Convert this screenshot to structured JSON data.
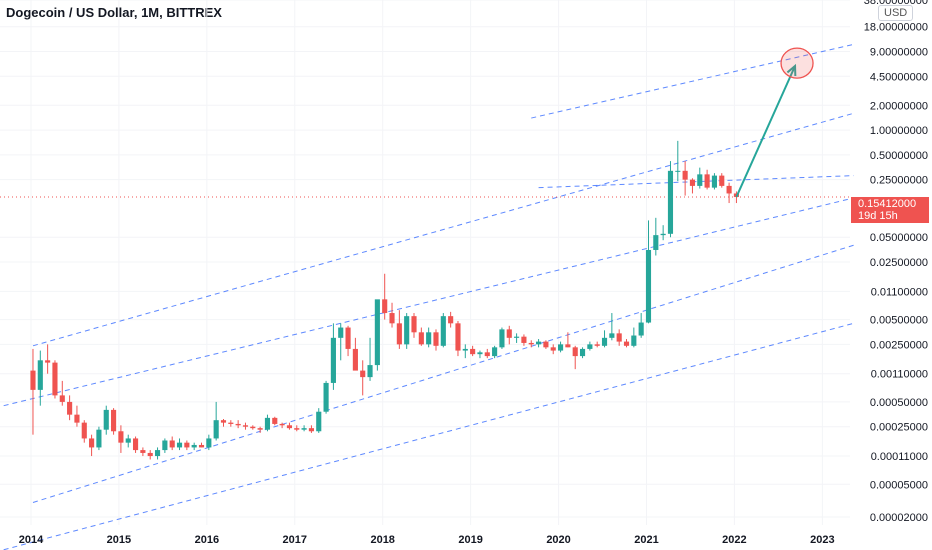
{
  "header": {
    "title": "Dogecoin / US Dollar, 1M, BITTREX",
    "currency": "USD"
  },
  "last_price": {
    "value": "0.15412000",
    "countdown": "19d 15h"
  },
  "colors": {
    "up": "#26a69a",
    "down": "#ef5350",
    "channel": "#2962ff",
    "arrow": "#26a69a",
    "target_circle": "#ef5350",
    "price_line": "#ef5350"
  },
  "chart_data": {
    "type": "candlestick",
    "title": "Dogecoin / US Dollar, 1M, BITTREX",
    "y_scale": "log",
    "x_ticks": [
      "2014",
      "2015",
      "2016",
      "2017",
      "2018",
      "2019",
      "2020",
      "2021",
      "2022",
      "2023"
    ],
    "y_ticks": [
      "38.00000000",
      "18.00000000",
      "9.00000000",
      "4.50000000",
      "2.00000000",
      "1.00000000",
      "0.50000000",
      "0.25000000",
      "0.05000000",
      "0.02500000",
      "0.01100000",
      "0.00500000",
      "0.00250000",
      "0.00110000",
      "0.00050000",
      "0.00025000",
      "0.00011000",
      "0.00005000",
      "0.00002000"
    ],
    "ylim": [
      1.6e-05,
      38
    ],
    "xlim": [
      "2013-09",
      "2023-05"
    ],
    "series": [
      {
        "t": "2014-01",
        "o": 0.0012,
        "h": 0.0022,
        "l": 0.0002,
        "c": 0.0007
      },
      {
        "t": "2014-02",
        "o": 0.0007,
        "h": 0.0021,
        "l": 0.00045,
        "c": 0.0016
      },
      {
        "t": "2014-03",
        "o": 0.0016,
        "h": 0.0025,
        "l": 0.0011,
        "c": 0.0015
      },
      {
        "t": "2014-04",
        "o": 0.0015,
        "h": 0.0016,
        "l": 0.00055,
        "c": 0.0006
      },
      {
        "t": "2014-05",
        "o": 0.0006,
        "h": 0.0009,
        "l": 0.00045,
        "c": 0.0005
      },
      {
        "t": "2014-06",
        "o": 0.0005,
        "h": 0.0006,
        "l": 0.0003,
        "c": 0.00035
      },
      {
        "t": "2014-07",
        "o": 0.00035,
        "h": 0.00045,
        "l": 0.00025,
        "c": 0.00028
      },
      {
        "t": "2014-08",
        "o": 0.00028,
        "h": 0.0003,
        "l": 0.00016,
        "c": 0.00018
      },
      {
        "t": "2014-09",
        "o": 0.00018,
        "h": 0.0002,
        "l": 0.00011,
        "c": 0.00014
      },
      {
        "t": "2014-10",
        "o": 0.00014,
        "h": 0.00025,
        "l": 0.00013,
        "c": 0.00023
      },
      {
        "t": "2014-11",
        "o": 0.00023,
        "h": 0.00045,
        "l": 0.0002,
        "c": 0.0004
      },
      {
        "t": "2014-12",
        "o": 0.0004,
        "h": 0.00042,
        "l": 0.0002,
        "c": 0.00022
      },
      {
        "t": "2015-01",
        "o": 0.00022,
        "h": 0.00026,
        "l": 0.00012,
        "c": 0.00016
      },
      {
        "t": "2015-02",
        "o": 0.00016,
        "h": 0.0002,
        "l": 0.00014,
        "c": 0.00018
      },
      {
        "t": "2015-03",
        "o": 0.00018,
        "h": 0.00019,
        "l": 0.00012,
        "c": 0.00013
      },
      {
        "t": "2015-04",
        "o": 0.00013,
        "h": 0.00014,
        "l": 0.00011,
        "c": 0.00012
      },
      {
        "t": "2015-05",
        "o": 0.00012,
        "h": 0.00013,
        "l": 0.0001,
        "c": 0.00011
      },
      {
        "t": "2015-06",
        "o": 0.00011,
        "h": 0.00014,
        "l": 0.0001,
        "c": 0.00013
      },
      {
        "t": "2015-07",
        "o": 0.00013,
        "h": 0.00018,
        "l": 0.00012,
        "c": 0.00017
      },
      {
        "t": "2015-08",
        "o": 0.00017,
        "h": 0.00019,
        "l": 0.00013,
        "c": 0.00014
      },
      {
        "t": "2015-09",
        "o": 0.00014,
        "h": 0.00018,
        "l": 0.00013,
        "c": 0.00016
      },
      {
        "t": "2015-10",
        "o": 0.00016,
        "h": 0.00017,
        "l": 0.00013,
        "c": 0.00014
      },
      {
        "t": "2015-11",
        "o": 0.00014,
        "h": 0.00016,
        "l": 0.00013,
        "c": 0.00015
      },
      {
        "t": "2015-12",
        "o": 0.00015,
        "h": 0.00016,
        "l": 0.00014,
        "c": 0.00014
      },
      {
        "t": "2016-01",
        "o": 0.00014,
        "h": 0.0002,
        "l": 0.00013,
        "c": 0.00018
      },
      {
        "t": "2016-02",
        "o": 0.00018,
        "h": 0.0005,
        "l": 0.00017,
        "c": 0.0003
      },
      {
        "t": "2016-03",
        "o": 0.0003,
        "h": 0.00031,
        "l": 0.00025,
        "c": 0.00028
      },
      {
        "t": "2016-04",
        "o": 0.00028,
        "h": 0.0003,
        "l": 0.00025,
        "c": 0.00027
      },
      {
        "t": "2016-05",
        "o": 0.00027,
        "h": 0.0003,
        "l": 0.00024,
        "c": 0.00026
      },
      {
        "t": "2016-06",
        "o": 0.00026,
        "h": 0.00028,
        "l": 0.00023,
        "c": 0.00025
      },
      {
        "t": "2016-07",
        "o": 0.00025,
        "h": 0.00026,
        "l": 0.00023,
        "c": 0.00024
      },
      {
        "t": "2016-08",
        "o": 0.00024,
        "h": 0.00025,
        "l": 0.00021,
        "c": 0.00023
      },
      {
        "t": "2016-09",
        "o": 0.00023,
        "h": 0.00035,
        "l": 0.00022,
        "c": 0.00032
      },
      {
        "t": "2016-10",
        "o": 0.00032,
        "h": 0.00033,
        "l": 0.00026,
        "c": 0.00027
      },
      {
        "t": "2016-11",
        "o": 0.00027,
        "h": 0.00028,
        "l": 0.00024,
        "c": 0.00026
      },
      {
        "t": "2016-12",
        "o": 0.00026,
        "h": 0.00028,
        "l": 0.00023,
        "c": 0.00024
      },
      {
        "t": "2017-01",
        "o": 0.00024,
        "h": 0.00026,
        "l": 0.00022,
        "c": 0.00023
      },
      {
        "t": "2017-02",
        "o": 0.00023,
        "h": 0.00026,
        "l": 0.00022,
        "c": 0.00024
      },
      {
        "t": "2017-03",
        "o": 0.00024,
        "h": 0.00026,
        "l": 0.00021,
        "c": 0.00022
      },
      {
        "t": "2017-04",
        "o": 0.00022,
        "h": 0.00042,
        "l": 0.00021,
        "c": 0.00038
      },
      {
        "t": "2017-05",
        "o": 0.00038,
        "h": 0.0009,
        "l": 0.00036,
        "c": 0.00085
      },
      {
        "t": "2017-06",
        "o": 0.00085,
        "h": 0.0045,
        "l": 0.0007,
        "c": 0.003
      },
      {
        "t": "2017-07",
        "o": 0.003,
        "h": 0.0045,
        "l": 0.0016,
        "c": 0.004
      },
      {
        "t": "2017-08",
        "o": 0.004,
        "h": 0.0042,
        "l": 0.0018,
        "c": 0.0022
      },
      {
        "t": "2017-09",
        "o": 0.0022,
        "h": 0.003,
        "l": 0.0017,
        "c": 0.0012
      },
      {
        "t": "2017-10",
        "o": 0.0012,
        "h": 0.0016,
        "l": 0.0006,
        "c": 0.001
      },
      {
        "t": "2017-11",
        "o": 0.001,
        "h": 0.003,
        "l": 0.0009,
        "c": 0.0014
      },
      {
        "t": "2017-12",
        "o": 0.0014,
        "h": 0.0075,
        "l": 0.0012,
        "c": 0.0088
      },
      {
        "t": "2018-01",
        "o": 0.0088,
        "h": 0.018,
        "l": 0.005,
        "c": 0.006
      },
      {
        "t": "2018-02",
        "o": 0.006,
        "h": 0.008,
        "l": 0.004,
        "c": 0.0045
      },
      {
        "t": "2018-03",
        "o": 0.0045,
        "h": 0.0065,
        "l": 0.0022,
        "c": 0.0025
      },
      {
        "t": "2018-04",
        "o": 0.0025,
        "h": 0.006,
        "l": 0.0022,
        "c": 0.0055
      },
      {
        "t": "2018-05",
        "o": 0.0055,
        "h": 0.006,
        "l": 0.003,
        "c": 0.0035
      },
      {
        "t": "2018-06",
        "o": 0.0035,
        "h": 0.004,
        "l": 0.0024,
        "c": 0.0025
      },
      {
        "t": "2018-07",
        "o": 0.0025,
        "h": 0.004,
        "l": 0.0023,
        "c": 0.0035
      },
      {
        "t": "2018-08",
        "o": 0.0035,
        "h": 0.0038,
        "l": 0.0021,
        "c": 0.0024
      },
      {
        "t": "2018-09",
        "o": 0.0024,
        "h": 0.006,
        "l": 0.0023,
        "c": 0.0055
      },
      {
        "t": "2018-10",
        "o": 0.0055,
        "h": 0.0062,
        "l": 0.004,
        "c": 0.0045
      },
      {
        "t": "2018-11",
        "o": 0.0045,
        "h": 0.0048,
        "l": 0.0018,
        "c": 0.0021
      },
      {
        "t": "2018-12",
        "o": 0.0021,
        "h": 0.0025,
        "l": 0.0017,
        "c": 0.0022
      },
      {
        "t": "2019-01",
        "o": 0.0022,
        "h": 0.0024,
        "l": 0.0018,
        "c": 0.0019
      },
      {
        "t": "2019-02",
        "o": 0.0019,
        "h": 0.0021,
        "l": 0.0017,
        "c": 0.002
      },
      {
        "t": "2019-03",
        "o": 0.002,
        "h": 0.0022,
        "l": 0.0017,
        "c": 0.0018
      },
      {
        "t": "2019-04",
        "o": 0.0018,
        "h": 0.0024,
        "l": 0.0017,
        "c": 0.0023
      },
      {
        "t": "2019-05",
        "o": 0.0023,
        "h": 0.004,
        "l": 0.0022,
        "c": 0.0038
      },
      {
        "t": "2019-06",
        "o": 0.0038,
        "h": 0.0042,
        "l": 0.0025,
        "c": 0.003
      },
      {
        "t": "2019-07",
        "o": 0.003,
        "h": 0.0034,
        "l": 0.0026,
        "c": 0.0031
      },
      {
        "t": "2019-08",
        "o": 0.0031,
        "h": 0.0033,
        "l": 0.0024,
        "c": 0.0026
      },
      {
        "t": "2019-09",
        "o": 0.0026,
        "h": 0.0028,
        "l": 0.0023,
        "c": 0.0025
      },
      {
        "t": "2019-10",
        "o": 0.0025,
        "h": 0.0029,
        "l": 0.0023,
        "c": 0.0027
      },
      {
        "t": "2019-11",
        "o": 0.0027,
        "h": 0.0028,
        "l": 0.0022,
        "c": 0.0023
      },
      {
        "t": "2019-12",
        "o": 0.0023,
        "h": 0.0025,
        "l": 0.0019,
        "c": 0.0021
      },
      {
        "t": "2020-01",
        "o": 0.0021,
        "h": 0.0027,
        "l": 0.002,
        "c": 0.0025
      },
      {
        "t": "2020-02",
        "o": 0.0025,
        "h": 0.0035,
        "l": 0.0023,
        "c": 0.0023
      },
      {
        "t": "2020-03",
        "o": 0.0023,
        "h": 0.0024,
        "l": 0.00125,
        "c": 0.0018
      },
      {
        "t": "2020-04",
        "o": 0.0018,
        "h": 0.0023,
        "l": 0.0017,
        "c": 0.0022
      },
      {
        "t": "2020-05",
        "o": 0.0022,
        "h": 0.0027,
        "l": 0.0021,
        "c": 0.0025
      },
      {
        "t": "2020-06",
        "o": 0.0025,
        "h": 0.0027,
        "l": 0.0023,
        "c": 0.0024
      },
      {
        "t": "2020-07",
        "o": 0.0024,
        "h": 0.0037,
        "l": 0.0023,
        "c": 0.003
      },
      {
        "t": "2020-08",
        "o": 0.003,
        "h": 0.006,
        "l": 0.0028,
        "c": 0.0034
      },
      {
        "t": "2020-09",
        "o": 0.0034,
        "h": 0.0038,
        "l": 0.0024,
        "c": 0.0027
      },
      {
        "t": "2020-10",
        "o": 0.0027,
        "h": 0.0029,
        "l": 0.0023,
        "c": 0.0024
      },
      {
        "t": "2020-11",
        "o": 0.0024,
        "h": 0.004,
        "l": 0.0023,
        "c": 0.0032
      },
      {
        "t": "2020-12",
        "o": 0.0032,
        "h": 0.006,
        "l": 0.003,
        "c": 0.0046
      },
      {
        "t": "2021-01",
        "o": 0.0046,
        "h": 0.08,
        "l": 0.0045,
        "c": 0.035
      },
      {
        "t": "2021-02",
        "o": 0.035,
        "h": 0.086,
        "l": 0.03,
        "c": 0.053
      },
      {
        "t": "2021-03",
        "o": 0.053,
        "h": 0.07,
        "l": 0.046,
        "c": 0.055
      },
      {
        "t": "2021-04",
        "o": 0.055,
        "h": 0.42,
        "l": 0.05,
        "c": 0.32
      },
      {
        "t": "2021-05",
        "o": 0.32,
        "h": 0.74,
        "l": 0.24,
        "c": 0.32
      },
      {
        "t": "2021-06",
        "o": 0.32,
        "h": 0.42,
        "l": 0.16,
        "c": 0.25
      },
      {
        "t": "2021-07",
        "o": 0.25,
        "h": 0.26,
        "l": 0.17,
        "c": 0.21
      },
      {
        "t": "2021-08",
        "o": 0.21,
        "h": 0.35,
        "l": 0.195,
        "c": 0.29
      },
      {
        "t": "2021-09",
        "o": 0.29,
        "h": 0.33,
        "l": 0.19,
        "c": 0.2
      },
      {
        "t": "2021-10",
        "o": 0.2,
        "h": 0.3,
        "l": 0.19,
        "c": 0.28
      },
      {
        "t": "2021-11",
        "o": 0.28,
        "h": 0.3,
        "l": 0.2,
        "c": 0.21
      },
      {
        "t": "2021-12",
        "o": 0.21,
        "h": 0.23,
        "l": 0.13,
        "c": 0.17
      },
      {
        "t": "2022-01",
        "o": 0.17,
        "h": 0.18,
        "l": 0.13,
        "c": 0.15412
      }
    ],
    "channel_lines": [
      {
        "from": [
          "2013-09",
          0.00045
        ],
        "to": [
          "2023-05",
          0.15
        ]
      },
      {
        "from": [
          "2014-01",
          0.0024
        ],
        "to": [
          "2023-05",
          1.6
        ]
      },
      {
        "from": [
          "2013-09",
          8e-06
        ],
        "to": [
          "2023-05",
          0.0045
        ]
      },
      {
        "from": [
          "2014-01",
          3e-05
        ],
        "to": [
          "2023-05",
          0.04
        ]
      },
      {
        "from": [
          "2019-10",
          0.2
        ],
        "to": [
          "2023-05",
          0.28
        ]
      },
      {
        "from": [
          "2019-09",
          1.4
        ],
        "to": [
          "2023-05",
          11
        ]
      }
    ],
    "annotations": {
      "arrow": {
        "from": [
          "2022-01",
          0.15412
        ],
        "to": [
          "2022-09",
          6.0
        ]
      },
      "target_circle": {
        "t": "2022-09",
        "v": 6.5
      },
      "current_price_line": 0.15412
    }
  }
}
